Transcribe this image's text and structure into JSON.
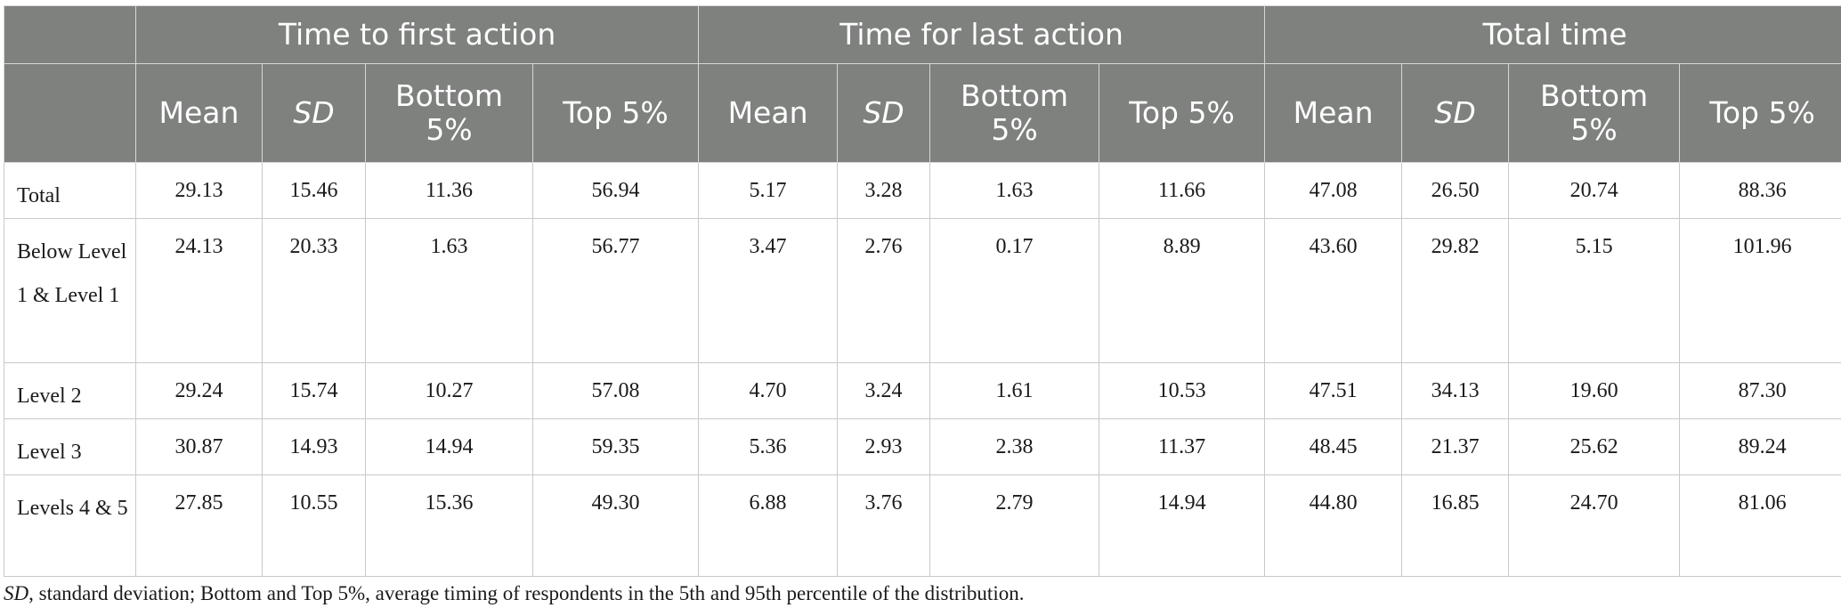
{
  "table": {
    "groups": [
      "Time to first action",
      "Time for last action",
      "Total time"
    ],
    "subcolumns": [
      "Mean",
      "SD",
      "Bottom 5%",
      "Top 5%"
    ],
    "rows": [
      {
        "label": "Total",
        "values": [
          "29.13",
          "15.46",
          "11.36",
          "56.94",
          "5.17",
          "3.28",
          "1.63",
          "11.66",
          "47.08",
          "26.50",
          "20.74",
          "88.36"
        ]
      },
      {
        "label": "Below Level 1 & Level 1",
        "values": [
          "24.13",
          "20.33",
          "1.63",
          "56.77",
          "3.47",
          "2.76",
          "0.17",
          "8.89",
          "43.60",
          "29.82",
          "5.15",
          "101.96"
        ]
      },
      {
        "label": "Level 2",
        "values": [
          "29.24",
          "15.74",
          "10.27",
          "57.08",
          "4.70",
          "3.24",
          "1.61",
          "10.53",
          "47.51",
          "34.13",
          "19.60",
          "87.30"
        ]
      },
      {
        "label": "Level 3",
        "values": [
          "30.87",
          "14.93",
          "14.94",
          "59.35",
          "5.36",
          "2.93",
          "2.38",
          "11.37",
          "48.45",
          "21.37",
          "25.62",
          "89.24"
        ]
      },
      {
        "label": "Levels 4 & 5",
        "values": [
          "27.85",
          "10.55",
          "15.36",
          "49.30",
          "6.88",
          "3.76",
          "2.79",
          "14.94",
          "44.80",
          "16.85",
          "24.70",
          "81.06"
        ]
      }
    ]
  },
  "footnote": {
    "abbr": "SD",
    "text": ", standard deviation; Bottom and Top 5%, average timing of respondents in the 5th and 95th percentile of the distribution."
  },
  "colors": {
    "header_bg": "#7f817f",
    "header_text": "#ffffff",
    "grid": "#c9c9c9"
  }
}
